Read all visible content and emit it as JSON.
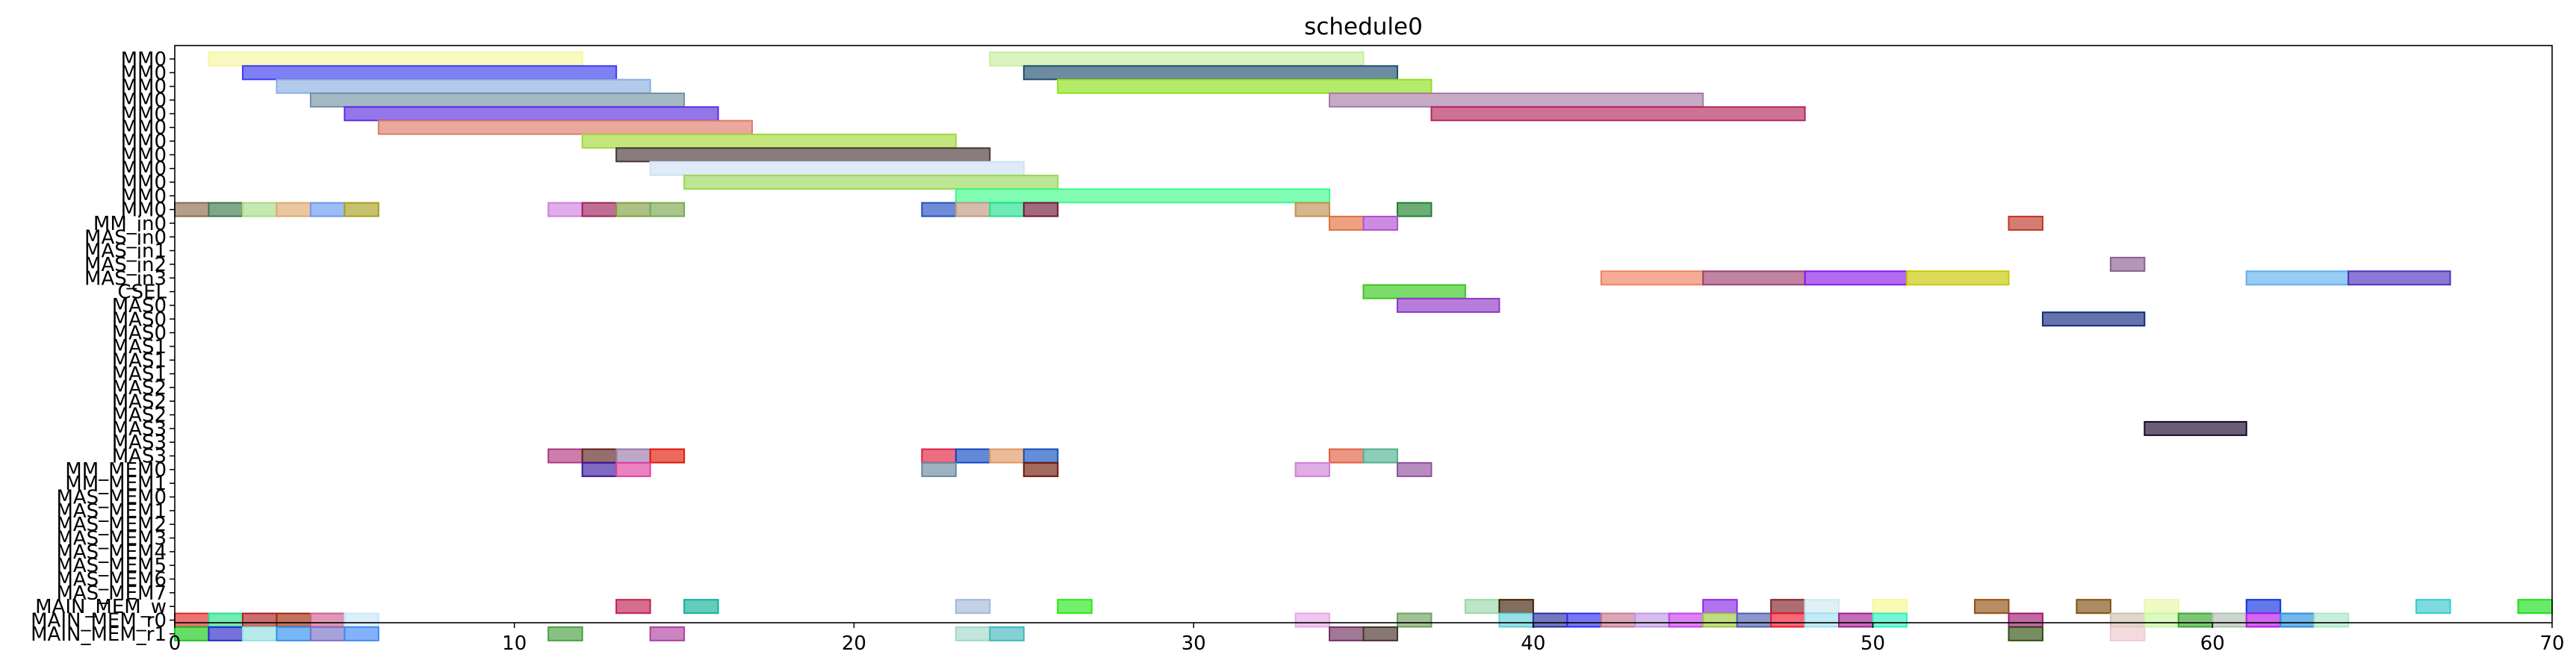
{
  "chart_data": {
    "type": "gantt",
    "title": "schedule0",
    "xlim": [
      0,
      70
    ],
    "x_ticks": [
      0,
      10,
      20,
      30,
      40,
      50,
      60,
      70
    ],
    "grid": false,
    "rows": [
      "MM0",
      "MM0",
      "MM0",
      "MM0",
      "MM0",
      "MM0",
      "MM0",
      "MM0",
      "MM0",
      "MM0",
      "MM0",
      "MM0",
      "MM_in0",
      "MAS_in0",
      "MAS_in1",
      "MAS_in2",
      "MAS_in3",
      "CSEL",
      "MAS0",
      "MAS0",
      "MAS0",
      "MAS1",
      "MAS1",
      "MAS1",
      "MAS2",
      "MAS2",
      "MAS2",
      "MAS3",
      "MAS3",
      "MAS3",
      "MM_MEM0",
      "MM_MEM1",
      "MAS_MEM0",
      "MAS_MEM1",
      "MAS_MEM2",
      "MAS_MEM3",
      "MAS_MEM4",
      "MAS_MEM5",
      "MAS_MEM6",
      "MAS_MEM7",
      "MAIN_MEM_w",
      "MAIN_MEM_r0",
      "MAIN_MEM_r1"
    ],
    "tasks": [
      {
        "row": 0,
        "start": 1,
        "end": 12,
        "color": "#f6f6a0"
      },
      {
        "row": 0,
        "start": 24,
        "end": 35,
        "color": "#c6f0a0"
      },
      {
        "row": 1,
        "start": 2,
        "end": 13,
        "color": "#3c3cf0"
      },
      {
        "row": 1,
        "start": 25,
        "end": 36,
        "color": "#1f4f6f"
      },
      {
        "row": 2,
        "start": 3,
        "end": 14,
        "color": "#8aaee0"
      },
      {
        "row": 2,
        "start": 26,
        "end": 37,
        "color": "#8ee01c"
      },
      {
        "row": 3,
        "start": 4,
        "end": 15,
        "color": "#7393a5"
      },
      {
        "row": 3,
        "start": 34,
        "end": 45,
        "color": "#a87ca8"
      },
      {
        "row": 4,
        "start": 5,
        "end": 16,
        "color": "#5b2de0"
      },
      {
        "row": 4,
        "start": 37,
        "end": 48,
        "color": "#b3265c"
      },
      {
        "row": 5,
        "start": 6,
        "end": 17,
        "color": "#e07a6a"
      },
      {
        "row": 6,
        "start": 12,
        "end": 23,
        "color": "#a4d83a"
      },
      {
        "row": 7,
        "start": 13,
        "end": 24,
        "color": "#4a3636"
      },
      {
        "row": 8,
        "start": 14,
        "end": 25,
        "color": "#cfe0f6"
      },
      {
        "row": 9,
        "start": 15,
        "end": 26,
        "color": "#9ad85a"
      },
      {
        "row": 10,
        "start": 23,
        "end": 34,
        "color": "#3cfa8a"
      },
      {
        "row": 11,
        "start": 0,
        "end": 1,
        "color": "#8a6a4a"
      },
      {
        "row": 11,
        "start": 1,
        "end": 2,
        "color": "#3a7a4a"
      },
      {
        "row": 11,
        "start": 2,
        "end": 3,
        "color": "#a6dc86"
      },
      {
        "row": 11,
        "start": 3,
        "end": 4,
        "color": "#e0a870"
      },
      {
        "row": 11,
        "start": 4,
        "end": 5,
        "color": "#6a9af0"
      },
      {
        "row": 11,
        "start": 5,
        "end": 6,
        "color": "#a8a020"
      },
      {
        "row": 11,
        "start": 11,
        "end": 12,
        "color": "#d080e0"
      },
      {
        "row": 11,
        "start": 12,
        "end": 13,
        "color": "#a0205a"
      },
      {
        "row": 11,
        "start": 13,
        "end": 14,
        "color": "#80a040"
      },
      {
        "row": 11,
        "start": 14,
        "end": 15,
        "color": "#7aa850"
      },
      {
        "row": 11,
        "start": 22,
        "end": 23,
        "color": "#2050c0"
      },
      {
        "row": 11,
        "start": 23,
        "end": 24,
        "color": "#c09880"
      },
      {
        "row": 11,
        "start": 24,
        "end": 25,
        "color": "#20e090"
      },
      {
        "row": 11,
        "start": 25,
        "end": 26,
        "color": "#701838"
      },
      {
        "row": 11,
        "start": 33,
        "end": 34,
        "color": "#c09050"
      },
      {
        "row": 11,
        "start": 36,
        "end": 37,
        "color": "#208030"
      },
      {
        "row": 12,
        "start": 34,
        "end": 35,
        "color": "#e07040"
      },
      {
        "row": 12,
        "start": 35,
        "end": 36,
        "color": "#b050d0"
      },
      {
        "row": 12,
        "start": 54,
        "end": 55,
        "color": "#c03828"
      },
      {
        "row": 15,
        "start": 57,
        "end": 58,
        "color": "#8a6090"
      },
      {
        "row": 16,
        "start": 42,
        "end": 45,
        "color": "#f08060"
      },
      {
        "row": 16,
        "start": 45,
        "end": 48,
        "color": "#a04070"
      },
      {
        "row": 16,
        "start": 48,
        "end": 51,
        "color": "#8a18e8"
      },
      {
        "row": 16,
        "start": 51,
        "end": 54,
        "color": "#c8c800"
      },
      {
        "row": 16,
        "start": 61,
        "end": 64,
        "color": "#60b0f0"
      },
      {
        "row": 16,
        "start": 64,
        "end": 67,
        "color": "#5030c0"
      },
      {
        "row": 17,
        "start": 35,
        "end": 38,
        "color": "#38c820"
      },
      {
        "row": 18,
        "start": 36,
        "end": 39,
        "color": "#9038c8"
      },
      {
        "row": 19,
        "start": 55,
        "end": 58,
        "color": "#102a80"
      },
      {
        "row": 27,
        "start": 58,
        "end": 61,
        "color": "#180828"
      },
      {
        "row": 29,
        "start": 11,
        "end": 12,
        "color": "#b03880"
      },
      {
        "row": 29,
        "start": 12,
        "end": 13,
        "color": "#602020"
      },
      {
        "row": 29,
        "start": 13,
        "end": 14,
        "color": "#9878a8"
      },
      {
        "row": 29,
        "start": 14,
        "end": 15,
        "color": "#e01808"
      },
      {
        "row": 29,
        "start": 22,
        "end": 23,
        "color": "#e02040"
      },
      {
        "row": 29,
        "start": 23,
        "end": 24,
        "color": "#1048c0"
      },
      {
        "row": 29,
        "start": 24,
        "end": 25,
        "color": "#e09860"
      },
      {
        "row": 29,
        "start": 25,
        "end": 26,
        "color": "#1050c0"
      },
      {
        "row": 29,
        "start": 34,
        "end": 35,
        "color": "#e06040"
      },
      {
        "row": 29,
        "start": 35,
        "end": 36,
        "color": "#50b090"
      },
      {
        "row": 30,
        "start": 12,
        "end": 13,
        "color": "#3a18a0"
      },
      {
        "row": 30,
        "start": 13,
        "end": 14,
        "color": "#e040a0"
      },
      {
        "row": 30,
        "start": 22,
        "end": 23,
        "color": "#6a88a0"
      },
      {
        "row": 30,
        "start": 25,
        "end": 26,
        "color": "#701808"
      },
      {
        "row": 30,
        "start": 33,
        "end": 34,
        "color": "#d080d8"
      },
      {
        "row": 30,
        "start": 36,
        "end": 37,
        "color": "#9050a0"
      },
      {
        "row": 40,
        "start": 13,
        "end": 14,
        "color": "#c02050"
      },
      {
        "row": 40,
        "start": 15,
        "end": 16,
        "color": "#10b098"
      },
      {
        "row": 40,
        "start": 23,
        "end": 24,
        "color": "#a0b8d8"
      },
      {
        "row": 40,
        "start": 26,
        "end": 27,
        "color": "#28e818"
      },
      {
        "row": 40,
        "start": 38,
        "end": 39,
        "color": "#98d8a8"
      },
      {
        "row": 40,
        "start": 39,
        "end": 40,
        "color": "#402008"
      },
      {
        "row": 40,
        "start": 45,
        "end": 46,
        "color": "#8828e8"
      },
      {
        "row": 40,
        "start": 47,
        "end": 48,
        "color": "#802028"
      },
      {
        "row": 40,
        "start": 48,
        "end": 49,
        "color": "#d0e8f0"
      },
      {
        "row": 40,
        "start": 50,
        "end": 51,
        "color": "#f8f890"
      },
      {
        "row": 40,
        "start": 53,
        "end": 54,
        "color": "#905010"
      },
      {
        "row": 40,
        "start": 56,
        "end": 57,
        "color": "#805010"
      },
      {
        "row": 40,
        "start": 58,
        "end": 59,
        "color": "#e8f8a8"
      },
      {
        "row": 40,
        "start": 61,
        "end": 62,
        "color": "#1030e0"
      },
      {
        "row": 40,
        "start": 66,
        "end": 67,
        "color": "#38c8d0"
      },
      {
        "row": 40,
        "start": 69,
        "end": 70,
        "color": "#18e018"
      },
      {
        "row": 41,
        "start": 0,
        "end": 1,
        "color": "#e02828"
      },
      {
        "row": 41,
        "start": 1,
        "end": 2,
        "color": "#28e088"
      },
      {
        "row": 41,
        "start": 2,
        "end": 3,
        "color": "#b02020"
      },
      {
        "row": 41,
        "start": 3,
        "end": 4,
        "color": "#a02808"
      },
      {
        "row": 41,
        "start": 4,
        "end": 5,
        "color": "#d06090"
      },
      {
        "row": 41,
        "start": 5,
        "end": 6,
        "color": "#c8e8f8"
      },
      {
        "row": 41,
        "start": 33,
        "end": 34,
        "color": "#e8a8e8"
      },
      {
        "row": 41,
        "start": 36,
        "end": 37,
        "color": "#70a060"
      },
      {
        "row": 41,
        "start": 39,
        "end": 40,
        "color": "#60d0d8"
      },
      {
        "row": 41,
        "start": 40,
        "end": 41,
        "color": "#2830a0"
      },
      {
        "row": 41,
        "start": 41,
        "end": 42,
        "color": "#3030f0"
      },
      {
        "row": 41,
        "start": 42,
        "end": 43,
        "color": "#c87890"
      },
      {
        "row": 41,
        "start": 43,
        "end": 44,
        "color": "#c098e8"
      },
      {
        "row": 41,
        "start": 44,
        "end": 45,
        "color": "#c840f0"
      },
      {
        "row": 41,
        "start": 45,
        "end": 46,
        "color": "#a0c840"
      },
      {
        "row": 41,
        "start": 46,
        "end": 47,
        "color": "#5060b0"
      },
      {
        "row": 41,
        "start": 47,
        "end": 48,
        "color": "#f01830"
      },
      {
        "row": 41,
        "start": 48,
        "end": 49,
        "color": "#a0e0f0"
      },
      {
        "row": 41,
        "start": 49,
        "end": 50,
        "color": "#a02090"
      },
      {
        "row": 41,
        "start": 50,
        "end": 51,
        "color": "#30f0c0"
      },
      {
        "row": 41,
        "start": 54,
        "end": 55,
        "color": "#a01870"
      },
      {
        "row": 41,
        "start": 57,
        "end": 58,
        "color": "#d0c0b0"
      },
      {
        "row": 41,
        "start": 58,
        "end": 59,
        "color": "#c8f8a0"
      },
      {
        "row": 41,
        "start": 59,
        "end": 60,
        "color": "#38a830"
      },
      {
        "row": 41,
        "start": 60,
        "end": 61,
        "color": "#b0c0b0"
      },
      {
        "row": 41,
        "start": 61,
        "end": 62,
        "color": "#b818e8"
      },
      {
        "row": 41,
        "start": 62,
        "end": 63,
        "color": "#2890e0"
      },
      {
        "row": 41,
        "start": 63,
        "end": 64,
        "color": "#a8e8c8"
      },
      {
        "row": 42,
        "start": 0,
        "end": 1,
        "color": "#18c818"
      },
      {
        "row": 42,
        "start": 1,
        "end": 2,
        "color": "#2828c8"
      },
      {
        "row": 42,
        "start": 2,
        "end": 3,
        "color": "#90e0e0"
      },
      {
        "row": 42,
        "start": 3,
        "end": 4,
        "color": "#3090f0"
      },
      {
        "row": 42,
        "start": 4,
        "end": 5,
        "color": "#7a70c8"
      },
      {
        "row": 42,
        "start": 5,
        "end": 6,
        "color": "#4088f8"
      },
      {
        "row": 42,
        "start": 11,
        "end": 12,
        "color": "#48a040"
      },
      {
        "row": 42,
        "start": 14,
        "end": 15,
        "color": "#b040a0"
      },
      {
        "row": 42,
        "start": 23,
        "end": 24,
        "color": "#a0d8c8"
      },
      {
        "row": 42,
        "start": 24,
        "end": 25,
        "color": "#40b8c0"
      },
      {
        "row": 42,
        "start": 34,
        "end": 35,
        "color": "#703060"
      },
      {
        "row": 42,
        "start": 35,
        "end": 36,
        "color": "#483028"
      },
      {
        "row": 42,
        "start": 54,
        "end": 55,
        "color": "#305010"
      },
      {
        "row": 42,
        "start": 57,
        "end": 58,
        "color": "#f0c8d0"
      }
    ]
  }
}
